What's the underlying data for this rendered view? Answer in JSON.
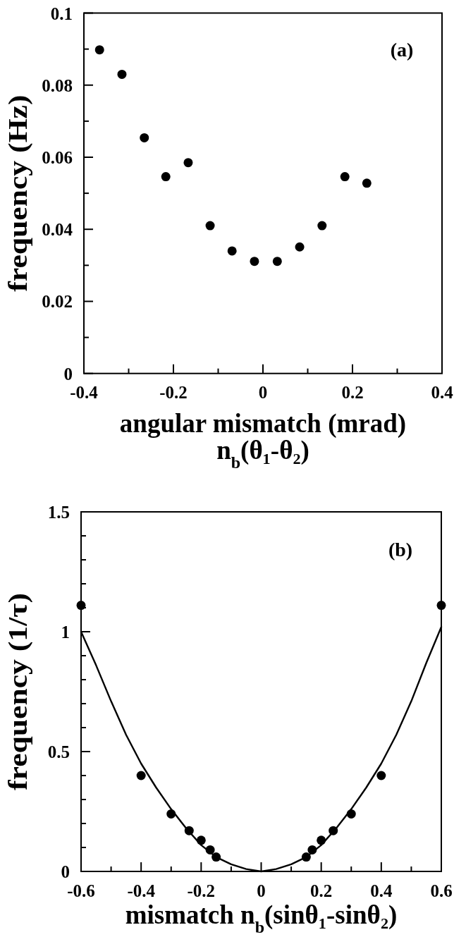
{
  "chart_data": [
    {
      "type": "scatter",
      "xlabel": "angular mismatch (mrad)\nn$_{b}$(θ₁-θ₂)",
      "ylabel": "frequency (Hz)",
      "annotations": [
        "(a)"
      ],
      "xlim": [
        -0.4,
        0.4
      ],
      "xticks": [
        -0.4,
        {
          "value": -0.3,
          "label": null
        },
        -0.2,
        {
          "value": -0.1,
          "label": null
        },
        0,
        {
          "value": 0.1,
          "label": null
        },
        0.2,
        {
          "value": 0.3,
          "label": null
        },
        0.4
      ],
      "ylim": [
        0,
        0.1
      ],
      "yticks": [
        0,
        {
          "value": 0.01,
          "label": null
        },
        0.02,
        {
          "value": 0.03,
          "label": null
        },
        0.04,
        {
          "value": 0.05,
          "label": null
        },
        0.06,
        {
          "value": 0.07,
          "label": null
        },
        0.08,
        {
          "value": 0.09,
          "label": null
        },
        0.1
      ],
      "series": [
        {
          "color": "#000000",
          "marker": "circle",
          "x": [
            -0.365,
            -0.315,
            -0.265,
            -0.217,
            -0.167,
            -0.118,
            -0.069,
            -0.019,
            0.032,
            0.082,
            0.132,
            0.183,
            0.232
          ],
          "values": [
            0.0898,
            0.083,
            0.0654,
            0.0546,
            0.0585,
            0.041,
            0.034,
            0.0311,
            0.0311,
            0.0351,
            0.041,
            0.0546,
            0.0528
          ]
        }
      ]
    },
    {
      "type": "scatter",
      "xlabel": "mismatch n$_{b}$(sinθ₁-sinθ₂)",
      "ylabel": "frequency (1/τ)",
      "annotations": [
        "(b)"
      ],
      "xlim": [
        -0.6,
        0.6
      ],
      "xticks": [
        -0.6,
        {
          "value": -0.5,
          "label": null
        },
        -0.4,
        {
          "value": -0.3,
          "label": null
        },
        -0.2,
        {
          "value": -0.1,
          "label": null
        },
        0,
        {
          "value": 0.1,
          "label": null
        },
        0.2,
        {
          "value": 0.3,
          "label": null
        },
        0.4,
        {
          "value": 0.5,
          "label": null
        },
        0.6
      ],
      "ylim": [
        0,
        1.5
      ],
      "yticks": [
        0,
        {
          "value": 0.1,
          "label": null
        },
        {
          "value": 0.2,
          "label": null
        },
        {
          "value": 0.3,
          "label": null
        },
        {
          "value": 0.4,
          "label": null
        },
        0.5,
        {
          "value": 0.6,
          "label": null
        },
        {
          "value": 0.7,
          "label": null
        },
        {
          "value": 0.8,
          "label": null
        },
        {
          "value": 0.9,
          "label": null
        },
        1,
        {
          "value": 1.1,
          "label": null
        },
        {
          "value": 1.2,
          "label": null
        },
        {
          "value": 1.3,
          "label": null
        },
        {
          "value": 1.4,
          "label": null
        },
        1.5
      ],
      "series": [
        {
          "type": "line",
          "color": "#000000",
          "line_style": "solid",
          "x": [
            -0.6,
            -0.55,
            -0.5,
            -0.45,
            -0.4,
            -0.35,
            -0.3,
            -0.25,
            -0.2,
            -0.15,
            -0.1,
            -0.05,
            0,
            0.05,
            0.1,
            0.15,
            0.2,
            0.25,
            0.3,
            0.35,
            0.4,
            0.45,
            0.5,
            0.55,
            0.6
          ],
          "values": [
            1.0,
            0.86,
            0.71,
            0.57,
            0.45,
            0.35,
            0.26,
            0.18,
            0.11,
            0.06,
            0.03,
            0.01,
            0,
            0.01,
            0.03,
            0.06,
            0.11,
            0.18,
            0.26,
            0.35,
            0.45,
            0.57,
            0.71,
            0.87,
            1.02
          ]
        },
        {
          "color": "#000000",
          "marker": "circle",
          "x": [
            -0.6,
            -0.4,
            -0.3,
            -0.24,
            -0.2,
            -0.17,
            -0.15,
            0.15,
            0.17,
            0.2,
            0.24,
            0.3,
            0.4,
            0.6
          ],
          "values": [
            1.11,
            0.4,
            0.24,
            0.17,
            0.13,
            0.09,
            0.06,
            0.06,
            0.09,
            0.13,
            0.17,
            0.24,
            0.4,
            1.11
          ]
        }
      ]
    }
  ]
}
